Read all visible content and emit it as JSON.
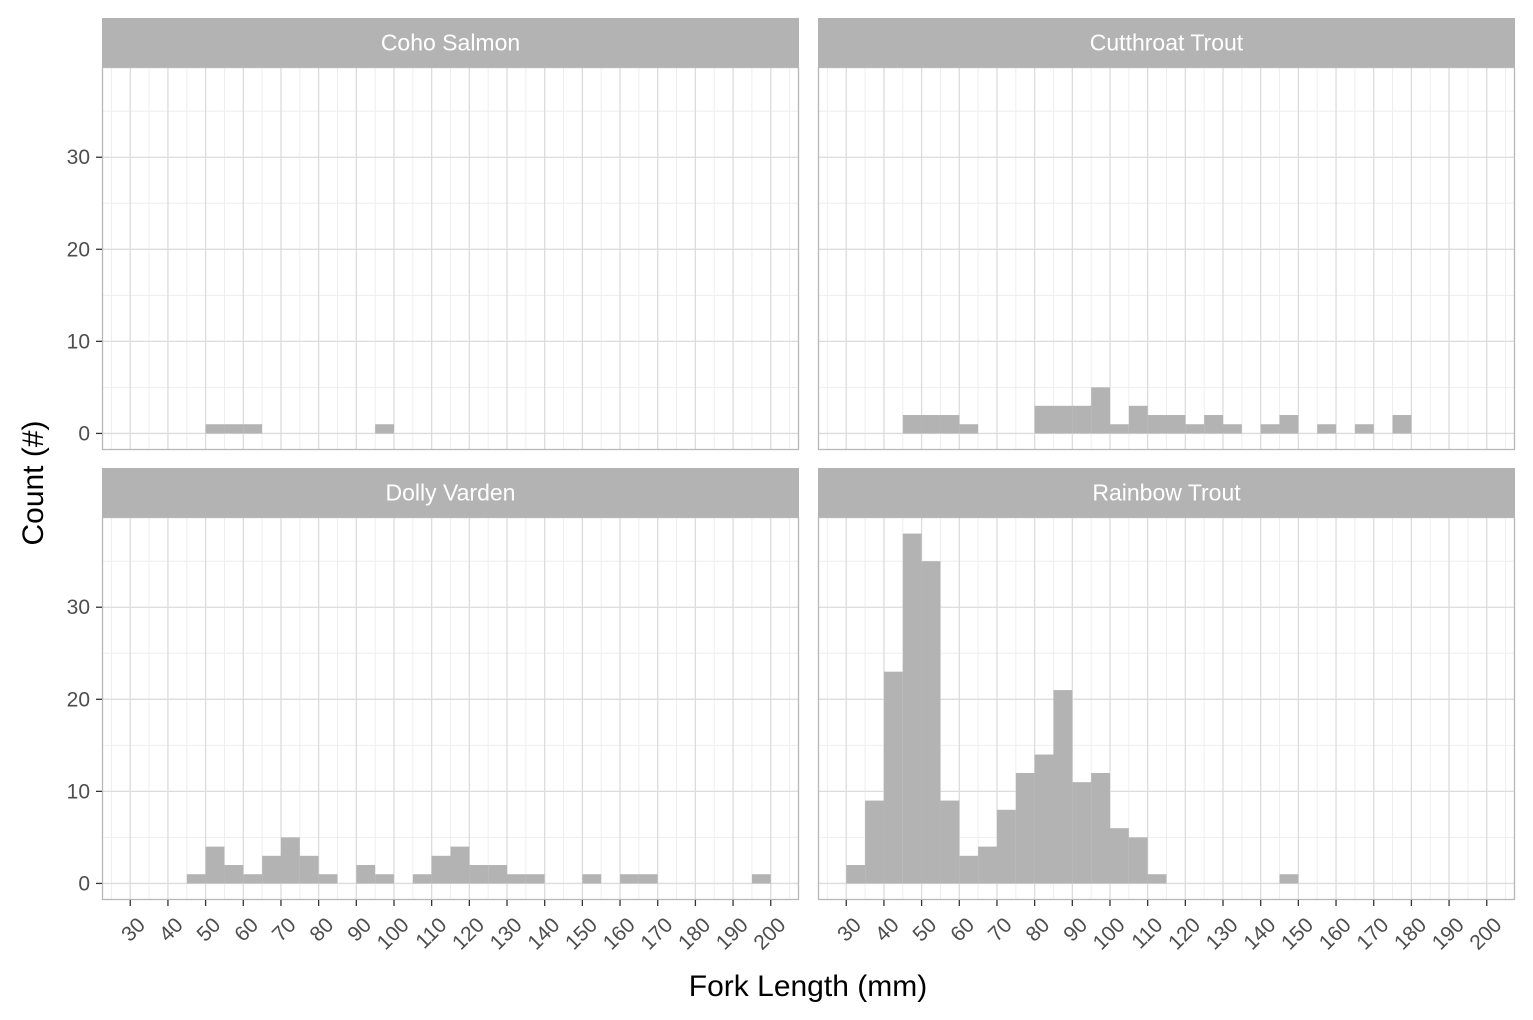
{
  "chart_data": {
    "type": "bar",
    "xlabel": "Fork Length (mm)",
    "ylabel": "Count (#)",
    "xlim": [
      22.5,
      207.5
    ],
    "ylim": [
      -1.8,
      39.8
    ],
    "x_ticks": [
      30,
      40,
      50,
      60,
      70,
      80,
      90,
      100,
      110,
      120,
      130,
      140,
      150,
      160,
      170,
      180,
      190,
      200
    ],
    "y_ticks": [
      0,
      10,
      20,
      30
    ],
    "bin_width": 5,
    "panels": [
      {
        "title": "Coho Salmon",
        "bins": [
          {
            "x0": 50,
            "count": 1
          },
          {
            "x0": 55,
            "count": 1
          },
          {
            "x0": 60,
            "count": 1
          },
          {
            "x0": 95,
            "count": 1
          }
        ]
      },
      {
        "title": "Cutthroat Trout",
        "bins": [
          {
            "x0": 45,
            "count": 2
          },
          {
            "x0": 50,
            "count": 2
          },
          {
            "x0": 55,
            "count": 2
          },
          {
            "x0": 60,
            "count": 1
          },
          {
            "x0": 80,
            "count": 3
          },
          {
            "x0": 85,
            "count": 3
          },
          {
            "x0": 90,
            "count": 3
          },
          {
            "x0": 95,
            "count": 5
          },
          {
            "x0": 100,
            "count": 1
          },
          {
            "x0": 105,
            "count": 3
          },
          {
            "x0": 110,
            "count": 2
          },
          {
            "x0": 115,
            "count": 2
          },
          {
            "x0": 120,
            "count": 1
          },
          {
            "x0": 125,
            "count": 2
          },
          {
            "x0": 130,
            "count": 1
          },
          {
            "x0": 140,
            "count": 1
          },
          {
            "x0": 145,
            "count": 2
          },
          {
            "x0": 155,
            "count": 1
          },
          {
            "x0": 165,
            "count": 1
          },
          {
            "x0": 175,
            "count": 2
          }
        ]
      },
      {
        "title": "Dolly Varden",
        "bins": [
          {
            "x0": 45,
            "count": 1
          },
          {
            "x0": 50,
            "count": 4
          },
          {
            "x0": 55,
            "count": 2
          },
          {
            "x0": 60,
            "count": 1
          },
          {
            "x0": 65,
            "count": 3
          },
          {
            "x0": 70,
            "count": 5
          },
          {
            "x0": 75,
            "count": 3
          },
          {
            "x0": 80,
            "count": 1
          },
          {
            "x0": 90,
            "count": 2
          },
          {
            "x0": 95,
            "count": 1
          },
          {
            "x0": 105,
            "count": 1
          },
          {
            "x0": 110,
            "count": 3
          },
          {
            "x0": 115,
            "count": 4
          },
          {
            "x0": 120,
            "count": 2
          },
          {
            "x0": 125,
            "count": 2
          },
          {
            "x0": 130,
            "count": 1
          },
          {
            "x0": 135,
            "count": 1
          },
          {
            "x0": 150,
            "count": 1
          },
          {
            "x0": 160,
            "count": 1
          },
          {
            "x0": 165,
            "count": 1
          },
          {
            "x0": 195,
            "count": 1
          }
        ]
      },
      {
        "title": "Rainbow Trout",
        "bins": [
          {
            "x0": 30,
            "count": 2
          },
          {
            "x0": 35,
            "count": 9
          },
          {
            "x0": 40,
            "count": 23
          },
          {
            "x0": 45,
            "count": 38
          },
          {
            "x0": 50,
            "count": 35
          },
          {
            "x0": 55,
            "count": 9
          },
          {
            "x0": 60,
            "count": 3
          },
          {
            "x0": 65,
            "count": 4
          },
          {
            "x0": 70,
            "count": 8
          },
          {
            "x0": 75,
            "count": 12
          },
          {
            "x0": 80,
            "count": 14
          },
          {
            "x0": 85,
            "count": 21
          },
          {
            "x0": 90,
            "count": 11
          },
          {
            "x0": 95,
            "count": 12
          },
          {
            "x0": 100,
            "count": 6
          },
          {
            "x0": 105,
            "count": 5
          },
          {
            "x0": 110,
            "count": 1
          },
          {
            "x0": 145,
            "count": 1
          }
        ]
      }
    ],
    "colors": {
      "bar": "#b3b3b3",
      "strip": "#b3b3b3",
      "strip_text": "#ffffff",
      "grid_major": "#dcdcdc",
      "grid_minor": "#eeeeee",
      "panel_border": "#b8b8b8"
    },
    "grid": true,
    "legend": "none"
  }
}
